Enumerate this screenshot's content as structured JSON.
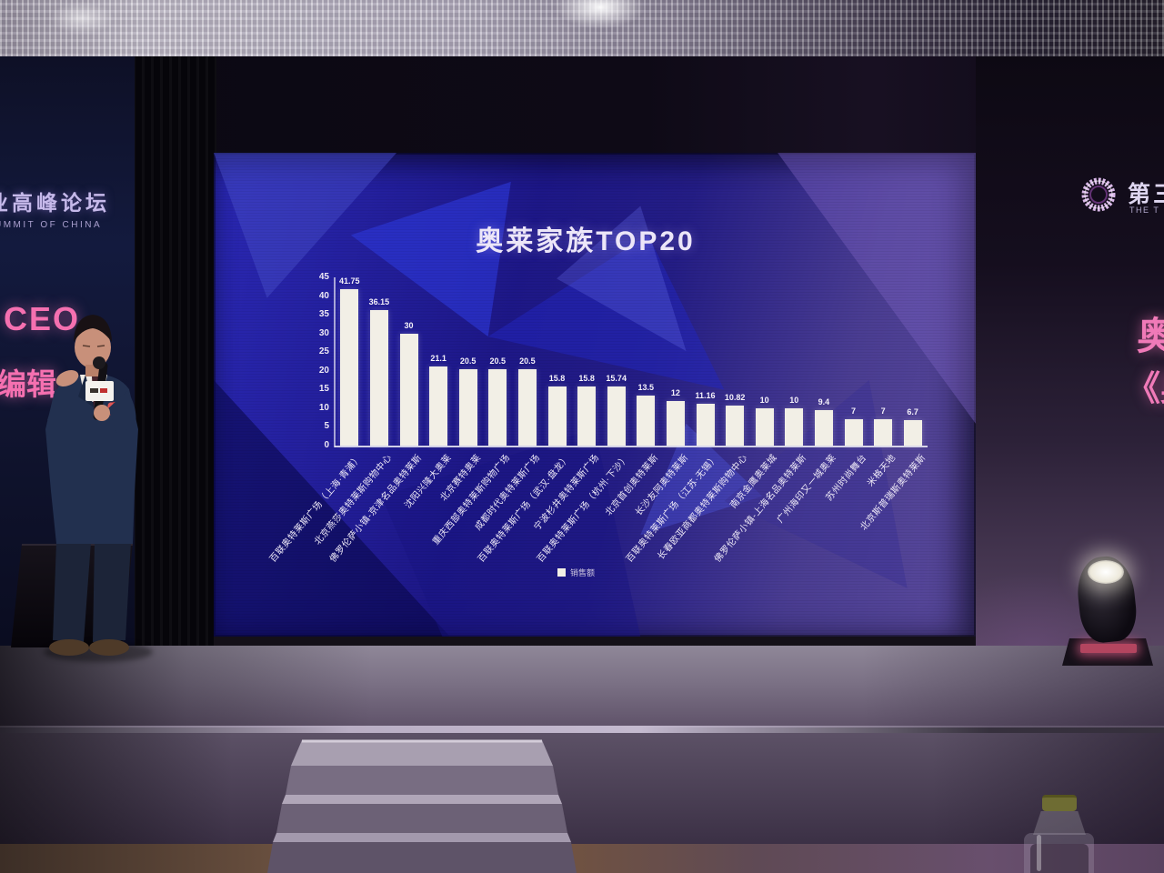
{
  "banners": {
    "left_top_cn": "业高峰论坛",
    "left_top_en": "UMMIT OF CHINA",
    "left_pink_1": "CEO",
    "left_pink_2": "编辑",
    "right_pink_1": "奥",
    "right_pink_2": "《奥"
  },
  "event_logo": {
    "cn": "第三",
    "en": "THE T"
  },
  "chart_data": {
    "type": "bar",
    "title": "奥莱家族TOP20",
    "categories": [
      "百联奥特莱斯广场（上海·青浦）",
      "北京燕莎奥特莱斯购物中心",
      "佛罗伦萨小镇-京津名品奥特莱斯",
      "沈阳兴隆大奥莱",
      "北京赛特奥莱",
      "重庆西部奥特莱斯购物广场",
      "成都时代奥特莱斯广场",
      "百联奥特莱斯广场（武汉·盘龙）",
      "宁波杉井奥特莱斯广场",
      "百联奥特莱斯广场（杭州·下沙）",
      "北京首创奥特莱斯",
      "长沙友阿奥特莱斯",
      "百联奥特莱斯广场（江苏·无锡）",
      "长春欧亚商都奥特莱斯购物中心",
      "南京金鹰奥莱城",
      "佛罗伦萨小镇-上海名品奥特莱斯",
      "广州海印又一城奥莱",
      "苏州时尚舞台",
      "米格天地",
      "北京斯普瑞斯奥特莱斯"
    ],
    "values": [
      41.75,
      36.15,
      30,
      21.1,
      20.5,
      20.5,
      20.5,
      15.8,
      15.8,
      15.74,
      13.5,
      12,
      11.16,
      10.82,
      10,
      10,
      9.4,
      7,
      7,
      6.7
    ],
    "legend": [
      "销售额"
    ],
    "legend_position": "bottom",
    "xlabel": "",
    "ylabel": "",
    "ylim": [
      0,
      45
    ],
    "yticks": [
      0,
      5,
      10,
      15,
      20,
      25,
      30,
      35,
      40,
      45
    ],
    "grid": false
  },
  "colors": {
    "bar": "#f2efe6",
    "screen_blue": "#2522a8",
    "screen_purple": "#5a4a9c",
    "accent_pink": "#f570b0",
    "title_text": "#ece6f8"
  }
}
